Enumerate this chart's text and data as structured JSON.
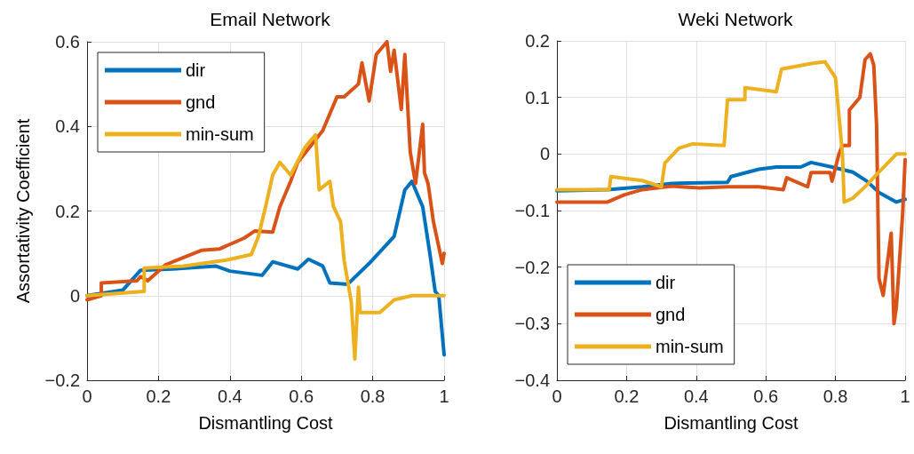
{
  "chart_data": [
    {
      "type": "line",
      "title": "Email Network",
      "xlabel": "Dismantling Cost",
      "ylabel": "Assortativity Coefficient",
      "xlim": [
        0,
        1
      ],
      "xticks": [
        0,
        0.2,
        0.4,
        0.6,
        0.8,
        1
      ],
      "ylim": [
        -0.2,
        0.6
      ],
      "yticks": [
        {
          "value": -0.2,
          "label": "−0.2"
        },
        0,
        0.2,
        0.4,
        0.6
      ],
      "grid": true,
      "legend": "top left",
      "marker": "none",
      "line_style": "solid",
      "series": [
        {
          "name": "dir",
          "color": "#0072bd",
          "x": [
            0,
            0.1,
            0.15,
            0.24,
            0.36,
            0.4,
            0.49,
            0.52,
            0.59,
            0.62,
            0.66,
            0.68,
            0.73,
            0.79,
            0.86,
            0.89,
            0.91,
            0.94,
            0.96,
            0.975,
            0.985,
            1.0
          ],
          "values": [
            0,
            0.013,
            0.06,
            0.063,
            0.07,
            0.058,
            0.048,
            0.08,
            0.063,
            0.086,
            0.07,
            0.03,
            0.027,
            0.076,
            0.14,
            0.25,
            0.27,
            0.21,
            0.1,
            0.01,
            0,
            -0.14
          ]
        },
        {
          "name": "gnd",
          "color": "#d95319",
          "x": [
            0,
            0.04,
            0.04,
            0.14,
            0.15,
            0.17,
            0.22,
            0.27,
            0.32,
            0.37,
            0.44,
            0.47,
            0.52,
            0.54,
            0.57,
            0.59,
            0.66,
            0.7,
            0.72,
            0.76,
            0.77,
            0.79,
            0.81,
            0.84,
            0.85,
            0.86,
            0.88,
            0.89,
            0.905,
            0.92,
            0.94,
            0.945,
            0.955,
            0.97,
            0.995,
            1.0
          ],
          "values": [
            -0.01,
            0,
            0.03,
            0.035,
            0.045,
            0.035,
            0.073,
            0.09,
            0.107,
            0.11,
            0.136,
            0.153,
            0.15,
            0.21,
            0.27,
            0.315,
            0.39,
            0.47,
            0.47,
            0.5,
            0.55,
            0.46,
            0.57,
            0.6,
            0.53,
            0.58,
            0.44,
            0.57,
            0.34,
            0.265,
            0.405,
            0.29,
            0.265,
            0.175,
            0.076,
            0.1
          ]
        },
        {
          "name": "min-sum",
          "color": "#edb120",
          "x": [
            0,
            0.16,
            0.16,
            0.27,
            0.39,
            0.46,
            0.48,
            0.5,
            0.52,
            0.54,
            0.57,
            0.61,
            0.64,
            0.65,
            0.68,
            0.69,
            0.71,
            0.72,
            0.74,
            0.75,
            0.76,
            0.765,
            0.82,
            0.86,
            0.91,
            1.0
          ],
          "values": [
            0,
            0.01,
            0.065,
            0.07,
            0.084,
            0.097,
            0.14,
            0.21,
            0.285,
            0.315,
            0.285,
            0.35,
            0.38,
            0.25,
            0.27,
            0.21,
            0.175,
            0.083,
            -0.015,
            -0.15,
            0.02,
            -0.04,
            -0.04,
            -0.01,
            0,
            0
          ]
        }
      ]
    },
    {
      "type": "line",
      "title": "Weki Network",
      "xlabel": "Dismantling Cost",
      "xlim": [
        0,
        1
      ],
      "xticks": [
        0,
        0.2,
        0.4,
        0.6,
        0.8,
        1
      ],
      "ylim": [
        -0.4,
        0.2
      ],
      "yticks": [
        {
          "value": -0.4,
          "label": "−0.4"
        },
        {
          "value": -0.3,
          "label": "−0.3"
        },
        {
          "value": -0.2,
          "label": "−0.2"
        },
        {
          "value": -0.1,
          "label": "−0.1"
        },
        0,
        0.1,
        0.2
      ],
      "grid": true,
      "legend": "bottom left",
      "marker": "none",
      "line_style": "solid",
      "series": [
        {
          "name": "dir",
          "color": "#0072bd",
          "x": [
            0,
            0.145,
            0.245,
            0.33,
            0.49,
            0.5,
            0.58,
            0.63,
            0.7,
            0.73,
            0.79,
            0.85,
            0.89,
            0.925,
            0.975,
            1.0
          ],
          "values": [
            -0.065,
            -0.063,
            -0.058,
            -0.052,
            -0.05,
            -0.04,
            -0.027,
            -0.023,
            -0.023,
            -0.015,
            -0.023,
            -0.032,
            -0.048,
            -0.068,
            -0.085,
            -0.08
          ]
        },
        {
          "name": "gnd",
          "color": "#d95319",
          "x": [
            0,
            0.145,
            0.195,
            0.245,
            0.33,
            0.41,
            0.49,
            0.58,
            0.65,
            0.66,
            0.72,
            0.73,
            0.785,
            0.79,
            0.81,
            0.82,
            0.84,
            0.84,
            0.87,
            0.885,
            0.9,
            0.91,
            0.918,
            0.925,
            0.937,
            0.96,
            0.968,
            0.975,
            0.993,
            1.0
          ],
          "values": [
            -0.085,
            -0.085,
            -0.072,
            -0.063,
            -0.057,
            -0.06,
            -0.058,
            -0.058,
            -0.063,
            -0.042,
            -0.058,
            -0.033,
            -0.033,
            -0.048,
            0,
            0.015,
            0.015,
            0.078,
            0.1,
            0.167,
            0.177,
            0.157,
            0.052,
            -0.22,
            -0.25,
            -0.14,
            -0.3,
            -0.27,
            -0.105,
            -0.01
          ]
        },
        {
          "name": "min-sum",
          "color": "#edb120",
          "x": [
            0,
            0.15,
            0.155,
            0.245,
            0.3,
            0.31,
            0.35,
            0.39,
            0.48,
            0.49,
            0.54,
            0.54,
            0.63,
            0.645,
            0.73,
            0.77,
            0.8,
            0.82,
            0.825,
            0.85,
            0.89,
            0.92,
            0.975,
            1.0
          ],
          "values": [
            -0.063,
            -0.063,
            -0.04,
            -0.047,
            -0.058,
            -0.016,
            0.01,
            0.018,
            0.015,
            0.096,
            0.096,
            0.117,
            0.11,
            0.15,
            0.16,
            0.163,
            0.135,
            0,
            -0.085,
            -0.078,
            -0.055,
            -0.035,
            0,
            0
          ]
        }
      ]
    }
  ]
}
